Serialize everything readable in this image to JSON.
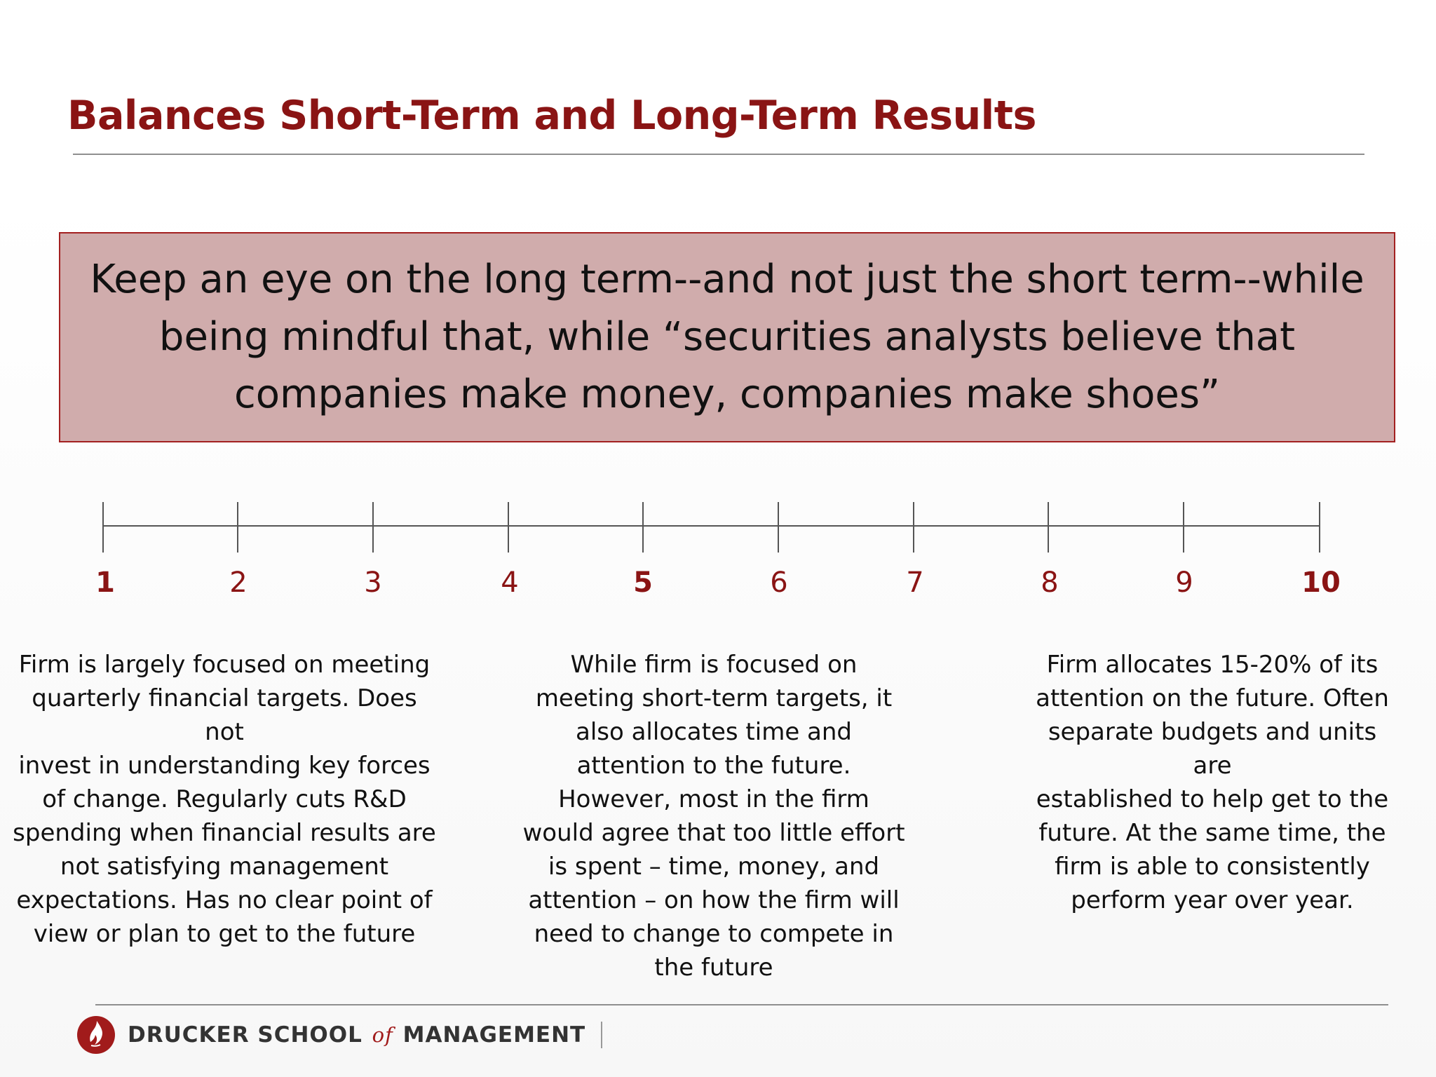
{
  "slide": {
    "title": "Balances Short-Term and Long-Term Results",
    "quote": "Keep an eye on the long term--and not just the short term--while being mindful that, while “securities analysts believe that companies make money, companies make shoes”"
  },
  "scale": {
    "labels": [
      "1",
      "2",
      "3",
      "4",
      "5",
      "6",
      "7",
      "8",
      "9",
      "10"
    ],
    "emphasized": [
      "1",
      "5",
      "10"
    ]
  },
  "descriptions": {
    "low": "Firm is largely focused on meeting\nquarterly financial targets. Does not\ninvest in understanding key forces\nof change. Regularly cuts R&D\nspending when financial results are\nnot satisfying management\nexpectations. Has no clear point of\nview or plan to get to the future",
    "mid": "While firm is focused on\nmeeting short-term targets, it\nalso allocates time and\nattention to the future.\nHowever, most in the firm\nwould agree that too little effort\nis spent – time, money, and\nattention – on how the firm will\nneed to change to compete in\nthe future",
    "high": "Firm allocates 15-20% of its\nattention on the future. Often\nseparate budgets and units are\nestablished to help get to the\nfuture. At the same time, the\nfirm is able to consistently\nperform year over year."
  },
  "footer": {
    "logo_part1": "DRUCKER SCHOOL",
    "logo_of": "of",
    "logo_part2": "MANAGEMENT",
    "logo_icon": "flame-icon"
  },
  "colors": {
    "accent": "#8a1414",
    "quote_bg": "#d0acac",
    "quote_border": "#a32020"
  }
}
